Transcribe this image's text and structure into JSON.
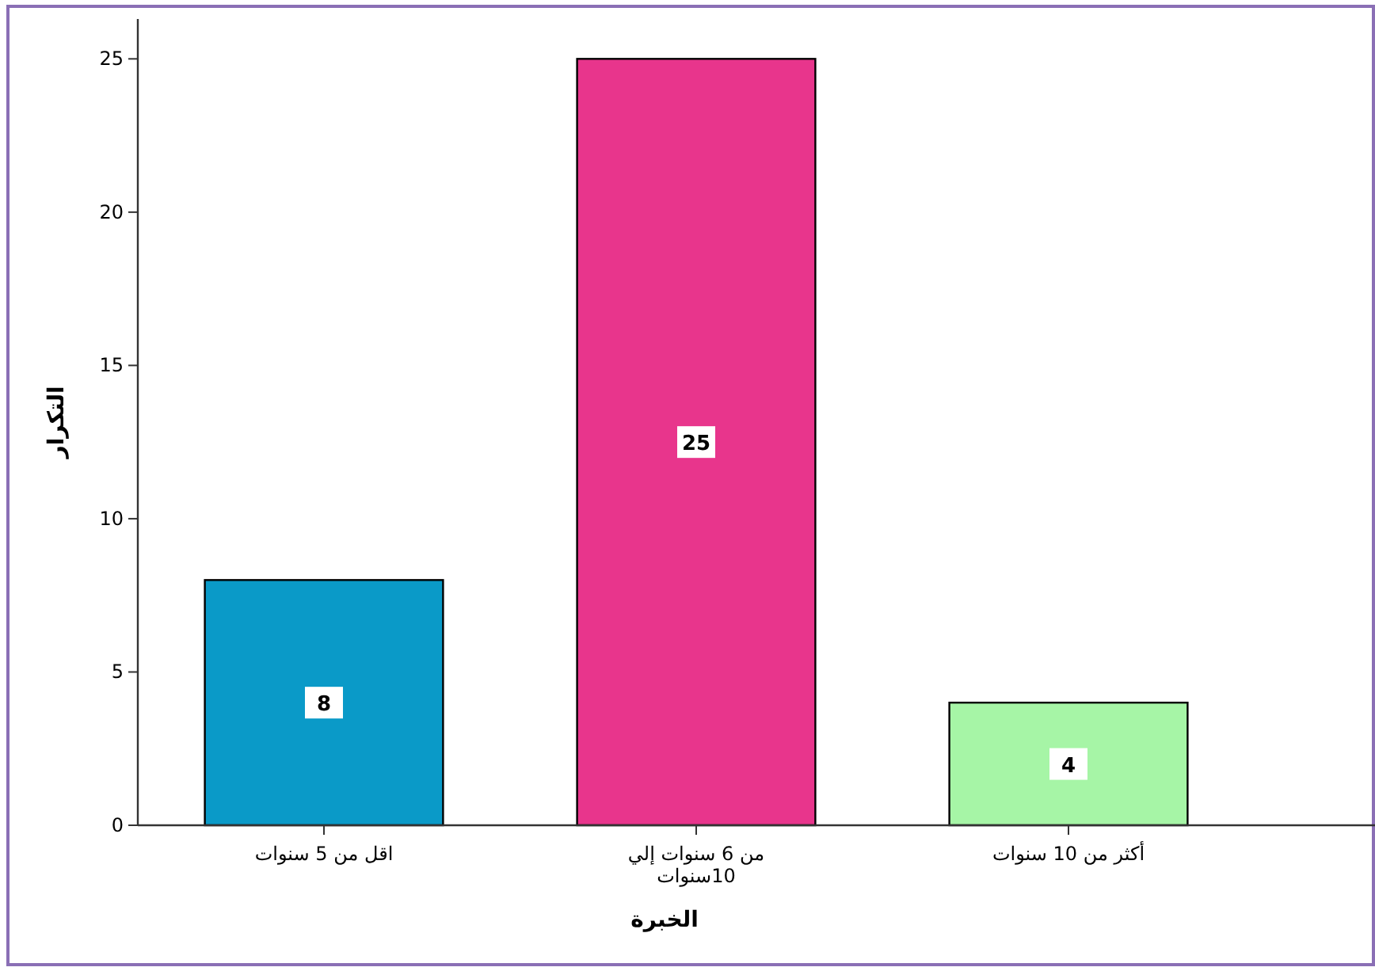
{
  "chart_data": {
    "type": "bar",
    "xlabel": "الخبرة",
    "ylabel": "التكرار",
    "categories": [
      "اقل من 5 سنوات",
      "من 6 سنوات إلي 10سنوات",
      "أكثر من 10 سنوات"
    ],
    "values": [
      8,
      25,
      4
    ],
    "colors": [
      "#0a9ac8",
      "#e8358c",
      "#a6f5a6"
    ],
    "ylim": [
      0,
      26.3
    ],
    "yticks": [
      0,
      5,
      10,
      15,
      20,
      25
    ],
    "grid": false,
    "data_labels": true
  }
}
